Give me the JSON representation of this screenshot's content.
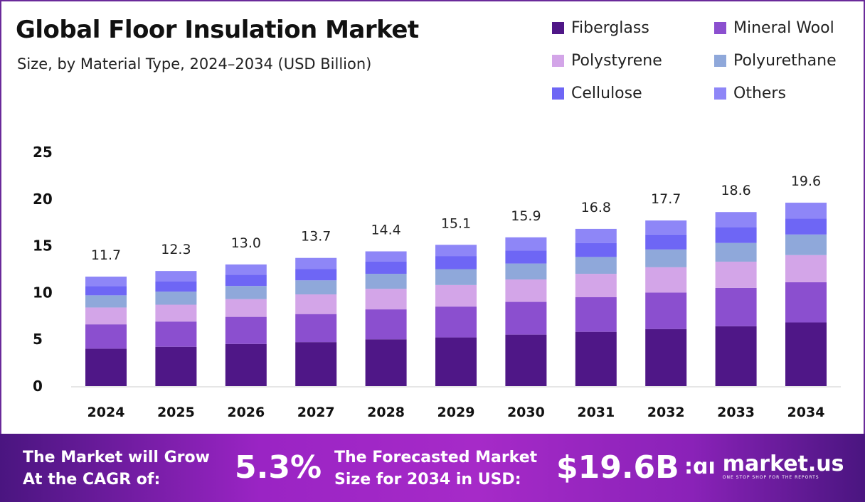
{
  "chart_data": {
    "type": "bar",
    "stacked": true,
    "title": "Global Floor Insulation Market",
    "subtitle": "Size, by Material Type, 2024–2034 (USD Billion)",
    "xlabel": "",
    "ylabel": "",
    "ylim": [
      0,
      25
    ],
    "yticks": [
      0,
      5,
      10,
      15,
      20,
      25
    ],
    "grid": false,
    "legend_position": "top-right",
    "categories": [
      "2024",
      "2025",
      "2026",
      "2027",
      "2028",
      "2029",
      "2030",
      "2031",
      "2032",
      "2033",
      "2034"
    ],
    "totals": [
      11.7,
      12.3,
      13.0,
      13.7,
      14.4,
      15.1,
      15.9,
      16.8,
      17.7,
      18.6,
      19.6
    ],
    "series": [
      {
        "name": "Fiberglass",
        "color": "#4f1787",
        "values": [
          4.0,
          4.2,
          4.5,
          4.7,
          5.0,
          5.2,
          5.5,
          5.8,
          6.1,
          6.4,
          6.8
        ]
      },
      {
        "name": "Mineral Wool",
        "color": "#8b4fcf",
        "values": [
          2.6,
          2.7,
          2.9,
          3.0,
          3.2,
          3.3,
          3.5,
          3.7,
          3.9,
          4.1,
          4.3
        ]
      },
      {
        "name": "Polystyrene",
        "color": "#d3a5e8",
        "values": [
          1.8,
          1.8,
          1.9,
          2.1,
          2.2,
          2.3,
          2.4,
          2.5,
          2.7,
          2.8,
          2.9
        ]
      },
      {
        "name": "Polyurethane",
        "color": "#8fa8da",
        "values": [
          1.3,
          1.4,
          1.4,
          1.5,
          1.6,
          1.7,
          1.7,
          1.8,
          1.9,
          2.0,
          2.2
        ]
      },
      {
        "name": "Cellulose",
        "color": "#6e66f5",
        "values": [
          1.0,
          1.1,
          1.2,
          1.2,
          1.3,
          1.4,
          1.4,
          1.5,
          1.6,
          1.7,
          1.7
        ]
      },
      {
        "name": "Others",
        "color": "#8e86f7",
        "values": [
          1.0,
          1.1,
          1.1,
          1.2,
          1.1,
          1.2,
          1.4,
          1.5,
          1.5,
          1.6,
          1.7
        ]
      }
    ]
  },
  "legend_order": [
    0,
    1,
    2,
    3,
    4,
    5
  ],
  "footer": {
    "cagr_label_line1": "The Market will Grow",
    "cagr_label_line2": "At the CAGR of:",
    "cagr_value": "5.3%",
    "forecast_label_line1": "The Forecasted Market",
    "forecast_label_line2": "Size for 2034 in USD:",
    "forecast_value": "$19.6B",
    "brand": "market.us",
    "brand_tagline": "ONE STOP SHOP FOR THE REPORTS"
  }
}
